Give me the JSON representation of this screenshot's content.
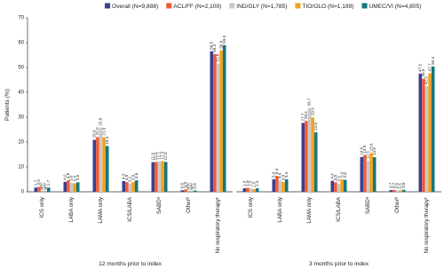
{
  "chart_data": {
    "type": "bar",
    "ylabel": "Patients (%)",
    "ylim": [
      0,
      70
    ],
    "yticks": [
      0,
      10,
      20,
      30,
      40,
      50,
      60,
      70
    ],
    "series": [
      {
        "name": "Overall (N=9,888)",
        "color": "#3a3f8e"
      },
      {
        "name": "ACL/FF (N=2,109)",
        "color": "#ef5b36"
      },
      {
        "name": "IND/GLY (N=1,785)",
        "color": "#c9c9c9"
      },
      {
        "name": "TIO/OLO (N=1,189)",
        "color": "#f2a21c"
      },
      {
        "name": "UMEC/VI (N=4,805)",
        "color": "#16767d"
      }
    ],
    "panels": [
      {
        "xlabel": "12 months prior to index",
        "categories": [
          "ICS only",
          "LABA only",
          "LAMA only",
          "ICS/LABA",
          "SABDᵃ",
          "Otherᵇ",
          "No respiratory therapyᶜ"
        ],
        "series": [
          {
            "values": [
              1.7,
              4.0,
              20.9,
              4.3,
              11.9,
              0.6,
              56.5
            ],
            "value_labels": [
              "1.7",
              "4.0",
              "20.9",
              "4.3",
              "11.9",
              "0.6",
              "56.5"
            ]
          },
          {
            "values": [
              2.0,
              4.6,
              22.0,
              3.9,
              12.0,
              0.9,
              55.4
            ],
            "value_labels": [
              "2.0",
              "4.6",
              "22.0",
              "3.9",
              "12.0",
              "0.9",
              "55.4"
            ]
          },
          {
            "values": [
              null,
              3.6,
              25.8,
              3.2,
              12.2,
              null,
              51.6
            ],
            "value_labels": [
              "NRᵈ",
              "3.6",
              "25.8",
              "3.2",
              "12.2",
              "NRᵈ",
              "51.6"
            ]
          },
          {
            "values": [
              null,
              3.4,
              21.9,
              3.9,
              12.3,
              null,
              56.9
            ],
            "value_labels": [
              "NRᵈ",
              "3.4",
              "21.9",
              "3.9",
              "12.3",
              "NRᵈ",
              "56.9"
            ]
          },
          {
            "values": [
              1.7,
              3.8,
              18.4,
              4.6,
              12.0,
              0.5,
              59.0
            ],
            "value_labels": [
              "1.7",
              "3.8",
              "18.4",
              "4.6",
              "12.0",
              "0.5",
              "59.0"
            ]
          }
        ]
      },
      {
        "xlabel": "3 months prior to index",
        "categories": [
          "ICS only",
          "LABA only",
          "LAMA only",
          "ICS/LABA",
          "SABDᵃ",
          "Otherᵇ",
          "No respiratory therapyᶜ"
        ],
        "series": [
          {
            "values": [
              1.4,
              5.0,
              27.7,
              4.4,
              14.0,
              0.7,
              47.5
            ],
            "value_labels": [
              "1.4",
              "5.0",
              "27.7",
              "4.4",
              "14.0",
              "0.7",
              "47.5"
            ]
          },
          {
            "values": [
              1.6,
              6.4,
              28.5,
              3.8,
              14.8,
              0.7,
              45.5
            ],
            "value_labels": [
              "1.6",
              "6.4",
              "28.5",
              "3.8",
              "14.8",
              "0.7",
              "45.5"
            ]
          },
          {
            "values": [
              1.5,
              4.6,
              33.7,
              3.3,
              12.5,
              0.6,
              42.5
            ],
            "value_labels": [
              "1.5",
              "4.6",
              "33.7",
              "3.3",
              "12.5",
              "0.6",
              "42.5"
            ]
          },
          {
            "values": [
              1.0,
              3.9,
              29.9,
              5.0,
              15.6,
              0.5,
              47.7
            ],
            "value_labels": [
              "1.0",
              "3.9",
              "29.9",
              "5.0",
              "15.6",
              "0.5",
              "47.7"
            ]
          },
          {
            "values": [
              1.4,
              5.0,
              23.9,
              4.8,
              13.9,
              0.8,
              50.4
            ],
            "value_labels": [
              "1.4",
              "5.0",
              "23.9",
              "4.8",
              "13.9",
              "0.8",
              "50.4"
            ]
          }
        ]
      }
    ]
  }
}
